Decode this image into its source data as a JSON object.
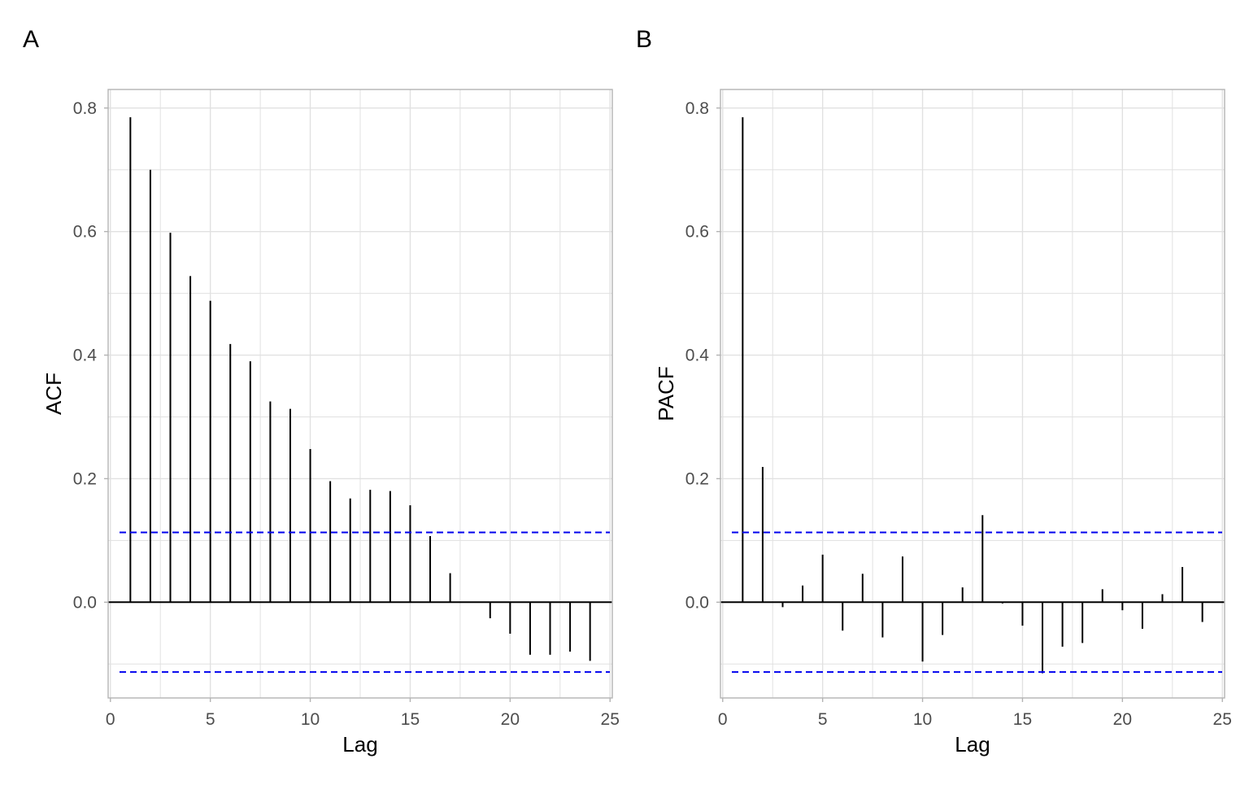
{
  "panels": [
    {
      "tag": "A",
      "chart_data": {
        "type": "bar",
        "title": "",
        "xlabel": "Lag",
        "ylabel": "ACF",
        "x": [
          1,
          2,
          3,
          4,
          5,
          6,
          7,
          8,
          9,
          10,
          11,
          12,
          13,
          14,
          15,
          16,
          17,
          18,
          19,
          20,
          21,
          22,
          23,
          24
        ],
        "values": [
          0.785,
          0.7,
          0.598,
          0.528,
          0.488,
          0.418,
          0.39,
          0.325,
          0.313,
          0.248,
          0.196,
          0.168,
          0.182,
          0.18,
          0.157,
          0.107,
          0.047,
          0.0,
          -0.026,
          -0.051,
          -0.085,
          -0.085,
          -0.08,
          -0.095
        ],
        "xlim": [
          0,
          25
        ],
        "ylim": [
          -0.155,
          0.83
        ],
        "x_ticks": [
          0,
          5,
          10,
          15,
          20,
          25
        ],
        "y_ticks": [
          0.0,
          0.2,
          0.4,
          0.6,
          0.8
        ],
        "x_tick_labels": [
          "0",
          "5",
          "10",
          "15",
          "20",
          "25"
        ],
        "y_tick_labels": [
          "0.0",
          "0.2",
          "0.4",
          "0.6",
          "0.8"
        ],
        "confidence_bounds": [
          0.113,
          -0.113
        ],
        "grid": true
      }
    },
    {
      "tag": "B",
      "chart_data": {
        "type": "bar",
        "title": "",
        "xlabel": "Lag",
        "ylabel": "PACF",
        "x": [
          1,
          2,
          3,
          4,
          5,
          6,
          7,
          8,
          9,
          10,
          11,
          12,
          13,
          14,
          15,
          16,
          17,
          18,
          19,
          20,
          21,
          22,
          23,
          24
        ],
        "values": [
          0.785,
          0.219,
          -0.008,
          0.027,
          0.077,
          -0.046,
          0.046,
          -0.057,
          0.074,
          -0.096,
          -0.053,
          0.024,
          0.141,
          -0.002,
          -0.038,
          -0.115,
          -0.072,
          -0.066,
          0.021,
          -0.013,
          -0.043,
          0.013,
          0.057,
          -0.032
        ],
        "xlim": [
          0,
          25
        ],
        "ylim": [
          -0.155,
          0.83
        ],
        "x_ticks": [
          0,
          5,
          10,
          15,
          20,
          25
        ],
        "y_ticks": [
          0.0,
          0.2,
          0.4,
          0.6,
          0.8
        ],
        "x_tick_labels": [
          "0",
          "5",
          "10",
          "15",
          "20",
          "25"
        ],
        "y_tick_labels": [
          "0.0",
          "0.2",
          "0.4",
          "0.6",
          "0.8"
        ],
        "confidence_bounds": [
          0.113,
          -0.113
        ],
        "grid": true
      }
    }
  ],
  "colors": {
    "bar": "#000000",
    "zero_line": "#000000",
    "confidence": "#0000ee",
    "grid": "#e1e1e1",
    "panel_border": "#b3b3b3",
    "tick_text": "#4d4d4d",
    "axis_title": "#000000"
  }
}
